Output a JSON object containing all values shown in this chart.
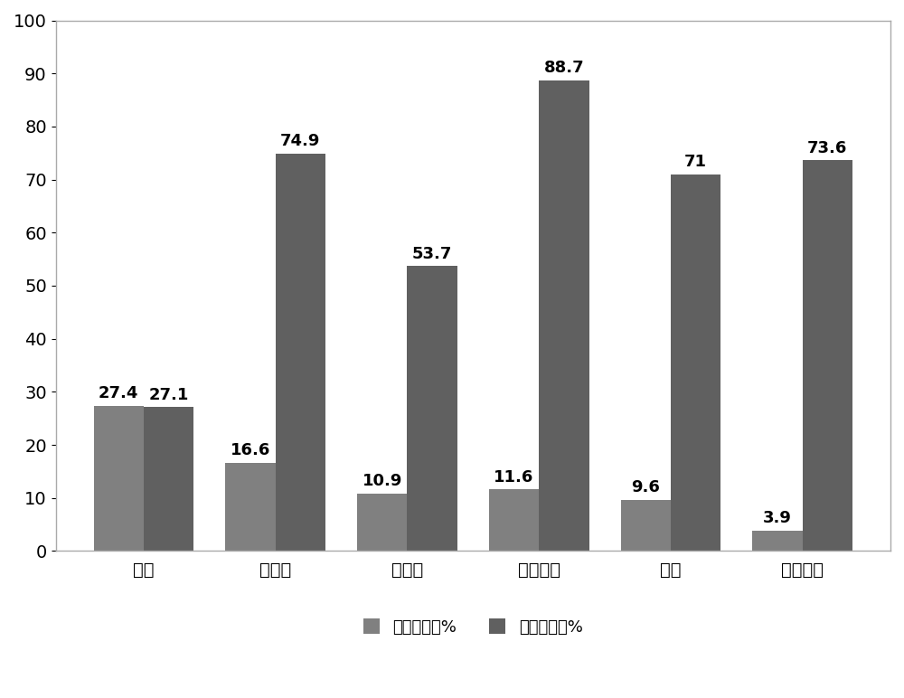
{
  "categories": [
    "尾矿",
    "粉煤灰",
    "煞砑石",
    "冶炼废渣",
    "炉渣",
    "脱硫石膏"
  ],
  "series1_name": "产生量占比%",
  "series2_name": "综合利用率%",
  "series1_values": [
    27.4,
    16.6,
    10.9,
    11.6,
    9.6,
    3.9
  ],
  "series2_values": [
    27.1,
    74.9,
    53.7,
    88.7,
    71.0,
    73.6
  ],
  "bar_color1": "#808080",
  "bar_color2": "#606060",
  "ylim": [
    0,
    100
  ],
  "yticks": [
    0,
    10,
    20,
    30,
    40,
    50,
    60,
    70,
    80,
    90,
    100
  ],
  "bar_width": 0.38,
  "label_fontsize": 13,
  "tick_fontsize": 14,
  "legend_fontsize": 13,
  "background_color": "#ffffff",
  "axis_line_color": "#000000",
  "border_color": "#aaaaaa"
}
